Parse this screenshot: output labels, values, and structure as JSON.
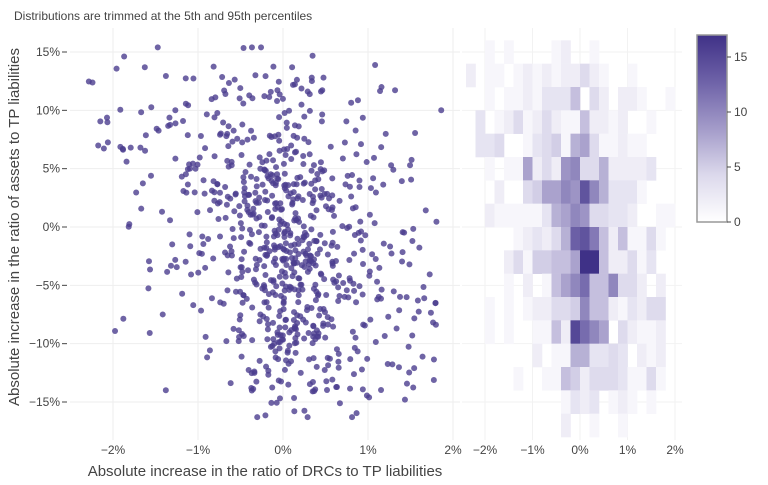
{
  "chart_data": [
    {
      "type": "scatter",
      "title": "Distributions are trimmed at the 5th and 95th percentiles",
      "xlabel": "Absolute increase in the ratio of DRCs to TP liabilities",
      "ylabel": "Absolute increase in the ratio of assets to TP liabilities",
      "x_ticks": [
        "−2%",
        "−1%",
        "0%",
        "1%",
        "2%"
      ],
      "x_tick_values": [
        -2,
        -1,
        0,
        1,
        2
      ],
      "y_ticks": [
        "15%",
        "10%",
        "5%",
        "0%",
        "−5%",
        "−10%",
        "−15%"
      ],
      "y_tick_values": [
        15,
        10,
        5,
        0,
        -5,
        -10,
        -15
      ],
      "xlim": [
        -2.6,
        2.0
      ],
      "ylim": [
        -17.8,
        17.2
      ],
      "marker_color": "#4b3d8f",
      "grid": true,
      "note_points": "points within each 2D-histogram bin of the heatmap"
    },
    {
      "type": "heatmap",
      "x_bin_start": -2.4,
      "x_bin_size": 0.2,
      "y_bin_top": 16,
      "y_bin_size": 2,
      "x_ticks": [
        "−2%",
        "−1%",
        "0%",
        "1%",
        "2%"
      ],
      "x_tick_values": [
        -2,
        -1,
        0,
        1,
        2
      ],
      "xlim": [
        -2.5,
        2.3
      ],
      "colorscale": [
        "#ffffff",
        "#dcd9ec",
        "#a39bc9",
        "#6e62a8",
        "#3f3187"
      ],
      "zmin": 0,
      "zmax": 17,
      "colorbar_ticks": [
        "0",
        "5",
        "10",
        "15"
      ],
      "colorbar_tick_values": [
        0,
        5,
        10,
        15
      ],
      "z": [
        [
          0,
          0,
          1,
          0,
          1,
          0,
          0,
          0,
          0,
          1,
          2,
          0,
          0,
          1,
          0,
          0,
          0,
          0,
          0,
          0,
          0,
          0
        ],
        [
          2,
          0,
          1,
          1,
          0,
          1,
          2,
          1,
          2,
          1,
          2,
          2,
          4,
          2,
          1,
          0,
          0,
          1,
          0,
          0,
          0,
          0
        ],
        [
          0,
          0,
          1,
          0,
          1,
          1,
          2,
          1,
          3,
          3,
          3,
          6,
          0,
          4,
          2,
          0,
          2,
          2,
          1,
          0,
          0,
          1
        ],
        [
          0,
          3,
          0,
          1,
          2,
          4,
          1,
          2,
          4,
          2,
          1,
          1,
          6,
          2,
          2,
          1,
          2,
          0,
          0,
          1,
          0,
          0
        ],
        [
          0,
          3,
          3,
          4,
          0,
          0,
          1,
          3,
          4,
          5,
          1,
          7,
          8,
          4,
          1,
          1,
          2,
          1,
          1,
          0,
          0,
          0
        ],
        [
          0,
          0,
          1,
          0,
          1,
          1,
          8,
          2,
          4,
          2,
          9,
          10,
          4,
          4,
          7,
          2,
          2,
          2,
          2,
          3,
          0,
          0
        ],
        [
          0,
          0,
          0,
          2,
          0,
          0,
          4,
          5,
          8,
          8,
          10,
          9,
          14,
          10,
          7,
          3,
          3,
          3,
          1,
          0,
          0,
          0
        ],
        [
          0,
          0,
          2,
          1,
          1,
          1,
          1,
          1,
          3,
          7,
          8,
          10,
          9,
          4,
          4,
          3,
          3,
          2,
          0,
          0,
          1,
          1
        ],
        [
          0,
          0,
          0,
          0,
          0,
          1,
          2,
          3,
          2,
          4,
          7,
          13,
          14,
          11,
          6,
          2,
          6,
          1,
          1,
          4,
          1,
          0
        ],
        [
          0,
          0,
          0,
          0,
          2,
          4,
          1,
          5,
          5,
          6,
          6,
          8,
          17,
          17,
          6,
          2,
          2,
          4,
          1,
          3,
          0,
          0
        ],
        [
          0,
          0,
          0,
          0,
          1,
          0,
          2,
          0,
          1,
          6,
          8,
          10,
          12,
          6,
          6,
          10,
          4,
          4,
          2,
          0,
          2,
          0
        ],
        [
          0,
          0,
          1,
          0,
          1,
          0,
          1,
          2,
          2,
          4,
          4,
          5,
          10,
          6,
          6,
          2,
          1,
          3,
          2,
          4,
          4,
          0
        ],
        [
          0,
          0,
          1,
          0,
          1,
          0,
          0,
          1,
          1,
          6,
          2,
          15,
          12,
          10,
          8,
          0,
          4,
          2,
          1,
          1,
          2,
          0
        ],
        [
          0,
          0,
          0,
          0,
          0,
          0,
          0,
          2,
          0,
          1,
          1,
          7,
          7,
          3,
          3,
          4,
          3,
          0,
          2,
          1,
          2,
          0
        ],
        [
          0,
          0,
          0,
          0,
          0,
          1,
          0,
          0,
          1,
          1,
          6,
          5,
          2,
          4,
          4,
          4,
          3,
          1,
          1,
          4,
          1,
          0
        ],
        [
          0,
          0,
          0,
          0,
          0,
          0,
          0,
          0,
          0,
          0,
          1,
          3,
          2,
          3,
          0,
          1,
          2,
          1,
          0,
          1,
          0,
          0
        ],
        [
          0,
          0,
          0,
          0,
          0,
          0,
          0,
          0,
          0,
          0,
          2,
          0,
          0,
          1,
          0,
          0,
          1,
          0,
          0,
          0,
          0,
          0
        ]
      ]
    }
  ]
}
